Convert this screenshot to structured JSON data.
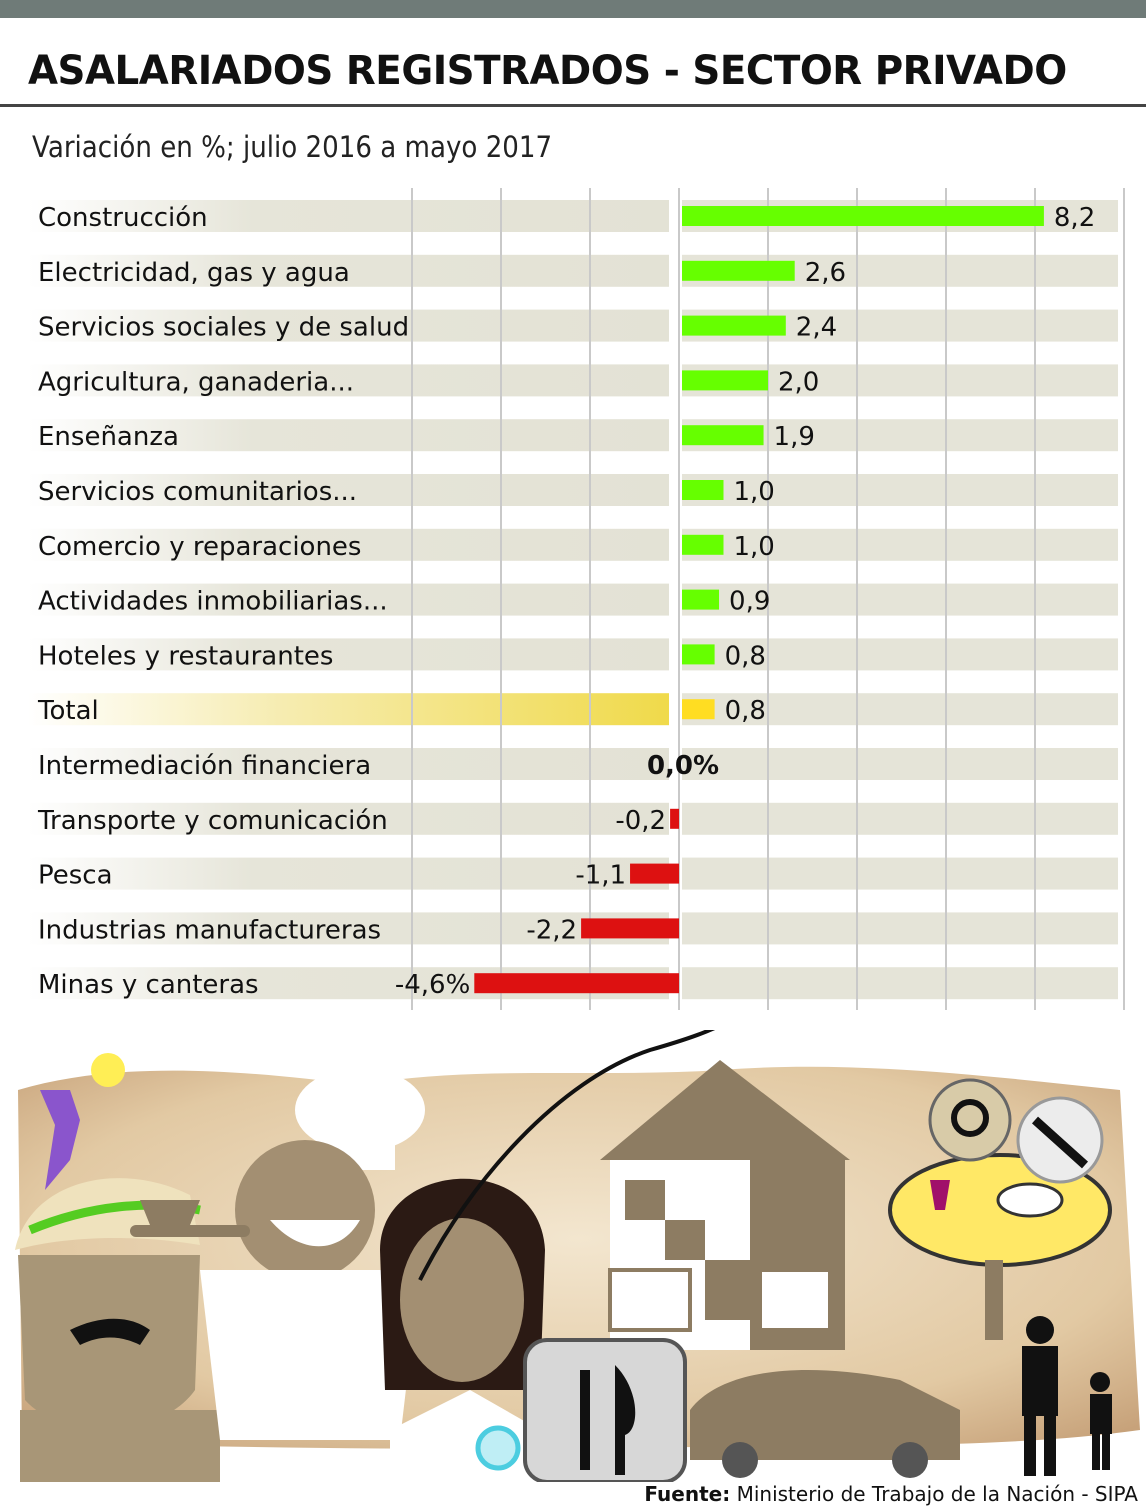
{
  "header": {
    "title": "ASALARIADOS REGISTRADOS - SECTOR PRIVADO",
    "subtitle": "Variación en %; julio 2016 a mayo 2017"
  },
  "chart_data": {
    "type": "bar",
    "orientation": "horizontal",
    "categories": [
      "Construcción",
      "Electricidad, gas y agua",
      "Servicios sociales y de salud",
      "Agricultura, ganaderia...",
      "Enseñanza",
      "Servicios comunitarios...",
      "Comercio y reparaciones",
      "Actividades inmobiliarias...",
      "Hoteles y restaurantes",
      "Total",
      "Intermediación financiera",
      "Transporte y comunicación",
      "Pesca",
      "Industrias manufactureras",
      "Minas y canteras"
    ],
    "values": [
      8.2,
      2.6,
      2.4,
      2.0,
      1.9,
      1.0,
      1.0,
      0.9,
      0.8,
      0.8,
      0.0,
      -0.2,
      -1.1,
      -2.2,
      -4.6
    ],
    "value_labels": [
      "8,2",
      "2,6",
      "2,4",
      "2,0",
      "1,9",
      "1,0",
      "1,0",
      "0,9",
      "0,8",
      "0,8",
      "0,0%",
      "-0,2",
      "-1,1",
      "-2,2",
      "-4,6%"
    ],
    "xlim": [
      -6,
      10
    ],
    "grid": true,
    "colors": {
      "positive": "#66ff00",
      "negative": "#dd1111",
      "total": "#ffdd22",
      "row_band": "#e5e4d8"
    }
  },
  "footer": {
    "source_label": "Fuente:",
    "source_text": "Ministerio de Trabajo de la Nación - SIPA"
  },
  "illustration": {
    "icons": [
      "farmer-icon",
      "chef-icon",
      "woman-icon",
      "house-icon",
      "cutlery-icon",
      "car-icon",
      "restaurant-table-icon",
      "chat-icon",
      "wrench-icon",
      "family-icon",
      "sun-icon"
    ]
  }
}
